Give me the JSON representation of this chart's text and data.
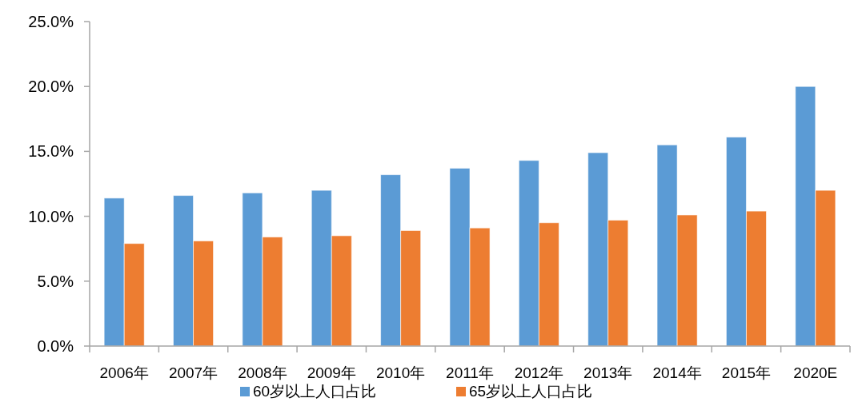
{
  "chart_data": {
    "type": "bar",
    "categories": [
      "2006年",
      "2007年",
      "2008年",
      "2009年",
      "2010年",
      "2011年",
      "2012年",
      "2013年",
      "2014年",
      "2015年",
      "2020E"
    ],
    "series": [
      {
        "name": "60岁以上人口占比",
        "color": "#5b9bd5",
        "values": [
          11.4,
          11.6,
          11.8,
          12.0,
          13.2,
          13.7,
          14.3,
          14.9,
          15.5,
          16.1,
          20.0
        ]
      },
      {
        "name": "65岁以上人口占比",
        "color": "#ed7d31",
        "values": [
          7.9,
          8.1,
          8.4,
          8.5,
          8.9,
          9.1,
          9.5,
          9.7,
          10.1,
          10.4,
          12.0
        ]
      }
    ],
    "ylim": [
      0,
      25
    ],
    "yticks": [
      {
        "value": 0,
        "label": "0.0%"
      },
      {
        "value": 5,
        "label": "5.0%"
      },
      {
        "value": 10,
        "label": "10.0%"
      },
      {
        "value": 15,
        "label": "15.0%"
      },
      {
        "value": 20,
        "label": "20.0%"
      },
      {
        "value": 25,
        "label": "25.0%"
      }
    ],
    "grid": false,
    "legend": "bottom"
  }
}
